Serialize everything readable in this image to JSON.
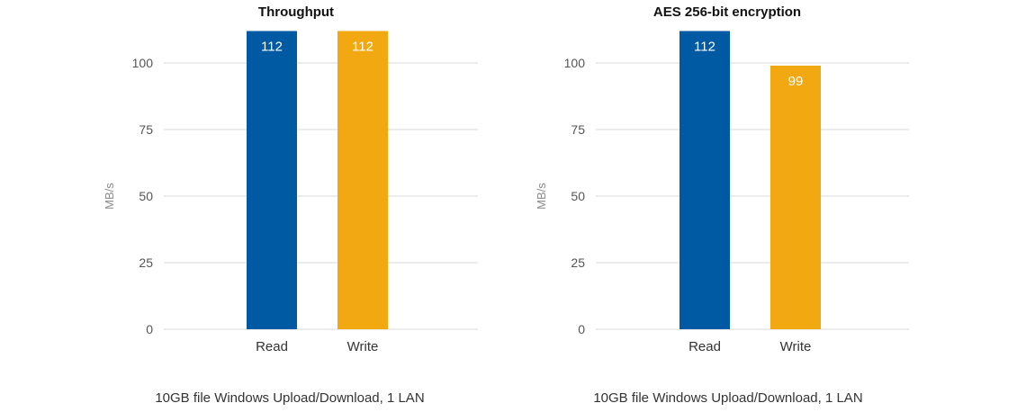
{
  "chart_data": [
    {
      "type": "bar",
      "title": "Throughput",
      "ylabel": "MB/s",
      "xlabel": "",
      "categories": [
        "Read",
        "Write"
      ],
      "values": [
        112,
        112
      ],
      "value_labels": [
        "112",
        "112"
      ],
      "bar_colors": [
        "#0059a3",
        "#f2a811"
      ],
      "ylim": [
        0,
        112
      ],
      "yticks": [
        0,
        25,
        50,
        75,
        100
      ],
      "grid": true,
      "caption": "10GB file Windows Upload/Download, 1 LAN"
    },
    {
      "type": "bar",
      "title": "AES 256-bit encryption",
      "ylabel": "MB/s",
      "xlabel": "",
      "categories": [
        "Read",
        "Write"
      ],
      "values": [
        112,
        99
      ],
      "value_labels": [
        "112",
        "99"
      ],
      "bar_colors": [
        "#0059a3",
        "#f2a811"
      ],
      "ylim": [
        0,
        112
      ],
      "yticks": [
        0,
        25,
        50,
        75,
        100
      ],
      "grid": true,
      "caption": "10GB file Windows Upload/Download, 1 LAN"
    }
  ]
}
